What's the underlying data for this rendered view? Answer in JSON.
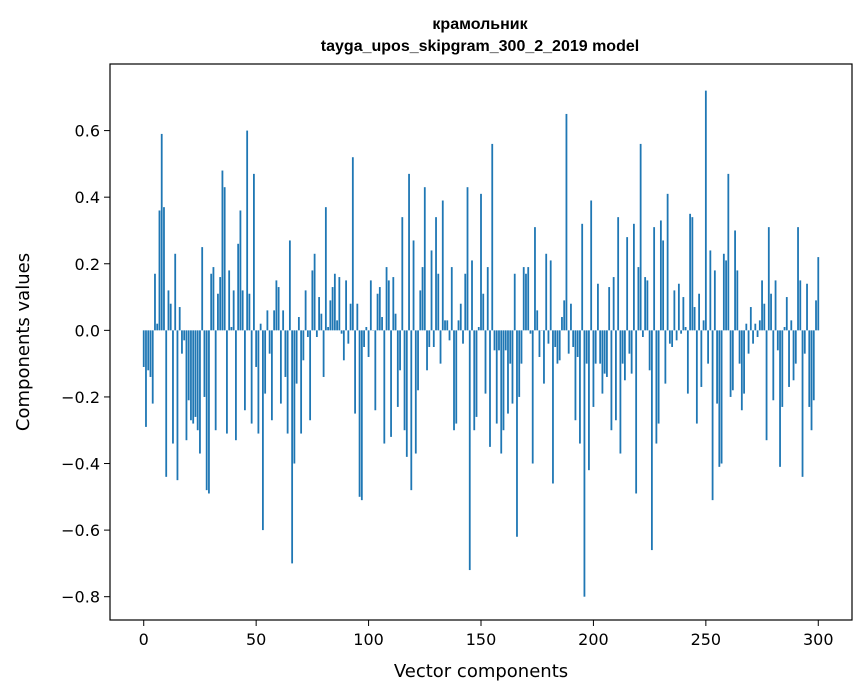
{
  "chart_data": {
    "type": "bar",
    "title": "крамольник",
    "subtitle": "tayga_upos_skipgram_300_2_2019 model",
    "xlabel": "Vector components",
    "ylabel": "Components values",
    "xlim": [
      -15,
      315
    ],
    "ylim": [
      -0.87,
      0.8
    ],
    "xticks": [
      0,
      50,
      100,
      150,
      200,
      250,
      300
    ],
    "yticks": [
      -0.8,
      -0.6,
      -0.4,
      -0.2,
      0.0,
      0.2,
      0.4,
      0.6
    ],
    "ytick_labels": [
      "−0.8",
      "−0.6",
      "−0.4",
      "−0.2",
      "0.0",
      "0.2",
      "0.4",
      "0.6"
    ],
    "grid": false,
    "bar_color": "#1f77b4",
    "values": [
      -0.11,
      -0.29,
      -0.12,
      -0.14,
      -0.22,
      0.17,
      0.02,
      0.36,
      0.59,
      0.37,
      -0.44,
      0.12,
      0.08,
      -0.34,
      0.23,
      -0.45,
      0.07,
      -0.07,
      -0.03,
      -0.33,
      -0.21,
      -0.27,
      -0.28,
      -0.26,
      -0.3,
      -0.37,
      0.25,
      -0.2,
      -0.48,
      -0.49,
      0.17,
      0.19,
      -0.3,
      0.11,
      0.16,
      0.48,
      0.43,
      -0.31,
      0.18,
      0.01,
      0.12,
      -0.33,
      0.26,
      0.36,
      0.12,
      -0.24,
      0.6,
      0.11,
      -0.28,
      0.47,
      -0.11,
      -0.31,
      0.02,
      -0.6,
      -0.19,
      0.06,
      -0.07,
      -0.27,
      0.06,
      0.15,
      0.13,
      -0.22,
      0.06,
      -0.14,
      -0.31,
      0.27,
      -0.7,
      -0.4,
      -0.16,
      0.04,
      -0.31,
      -0.09,
      0.12,
      -0.02,
      -0.27,
      0.18,
      0.23,
      -0.02,
      0.1,
      0.05,
      -0.14,
      0.37,
      0.01,
      0.09,
      0.13,
      0.17,
      0.03,
      0.16,
      -0.01,
      -0.09,
      0.15,
      -0.04,
      0.08,
      0.52,
      -0.25,
      0.08,
      -0.5,
      -0.51,
      -0.05,
      0.01,
      -0.08,
      0.15,
      0.0,
      -0.24,
      0.11,
      0.13,
      0.04,
      -0.34,
      0.19,
      0.15,
      -0.32,
      0.16,
      0.05,
      -0.23,
      -0.12,
      0.34,
      -0.3,
      -0.38,
      0.47,
      -0.48,
      0.27,
      -0.37,
      -0.18,
      0.12,
      0.19,
      0.43,
      -0.12,
      -0.05,
      0.24,
      -0.05,
      0.34,
      0.17,
      -0.1,
      0.39,
      0.03,
      0.03,
      -0.03,
      0.19,
      -0.3,
      -0.28,
      0.03,
      0.08,
      -0.04,
      0.17,
      0.43,
      -0.72,
      0.21,
      -0.3,
      -0.26,
      0.01,
      0.41,
      0.11,
      -0.19,
      0.19,
      -0.35,
      0.56,
      -0.06,
      -0.28,
      -0.06,
      -0.37,
      -0.3,
      -0.06,
      -0.25,
      -0.1,
      -0.22,
      0.17,
      -0.62,
      -0.2,
      -0.1,
      0.19,
      0.17,
      0.19,
      -0.01,
      -0.4,
      0.31,
      0.06,
      -0.08,
      0.0,
      -0.16,
      0.23,
      -0.04,
      0.21,
      -0.46,
      -0.05,
      -0.1,
      -0.09,
      0.04,
      0.09,
      0.65,
      -0.07,
      0.08,
      -0.05,
      -0.27,
      -0.08,
      -0.34,
      0.32,
      -0.8,
      -0.1,
      -0.42,
      0.39,
      -0.23,
      -0.1,
      0.14,
      -0.1,
      -0.19,
      -0.13,
      -0.14,
      0.13,
      -0.3,
      0.16,
      -0.27,
      0.34,
      -0.37,
      -0.1,
      -0.15,
      0.28,
      -0.07,
      -0.13,
      0.32,
      -0.49,
      0.19,
      0.56,
      -0.02,
      0.16,
      0.15,
      -0.12,
      -0.66,
      0.31,
      -0.34,
      -0.28,
      0.33,
      0.27,
      -0.16,
      0.41,
      -0.04,
      -0.05,
      0.12,
      -0.03,
      0.14,
      -0.01,
      0.1,
      0.01,
      -0.19,
      0.35,
      0.34,
      0.07,
      -0.28,
      0.11,
      -0.17,
      0.03,
      0.72,
      -0.1,
      0.24,
      -0.51,
      0.18,
      -0.22,
      -0.41,
      -0.4,
      0.23,
      0.21,
      0.47,
      -0.2,
      -0.18,
      0.3,
      0.18,
      -0.1,
      -0.24,
      -0.19,
      0.02,
      -0.07,
      0.07,
      -0.04,
      0.02,
      -0.02,
      0.03,
      0.15,
      0.08,
      -0.33,
      0.31,
      0.11,
      -0.21,
      0.15,
      -0.06,
      -0.41,
      -0.23,
      0.01,
      0.1,
      -0.17,
      0.03,
      -0.15,
      -0.1,
      0.31,
      0.15,
      -0.44,
      -0.07,
      0.14,
      -0.23,
      -0.3,
      -0.21,
      0.09,
      0.22
    ]
  }
}
